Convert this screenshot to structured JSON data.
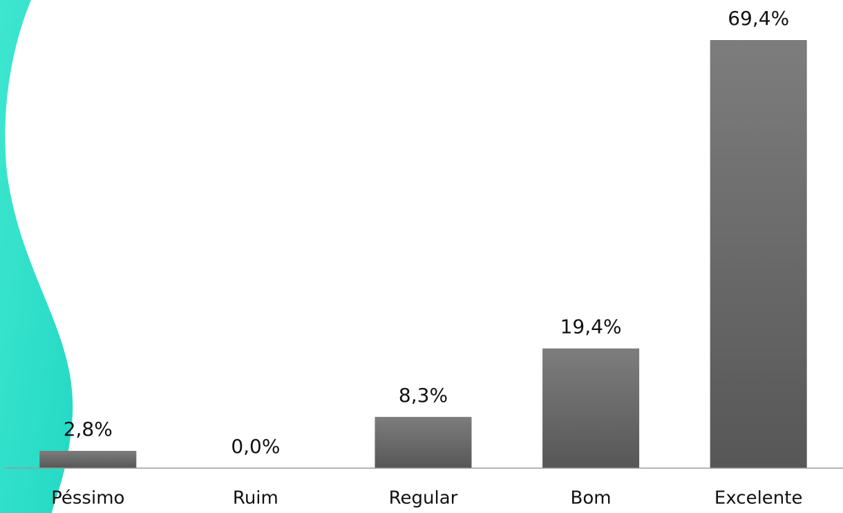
{
  "chart_data": {
    "type": "bar",
    "categories": [
      "Péssimo",
      "Ruim",
      "Regular",
      "Bom",
      "Excelente"
    ],
    "values": [
      2.8,
      0.0,
      8.3,
      19.4,
      69.4
    ],
    "value_labels": [
      "2,8%",
      "0,0%",
      "8,3%",
      "19,4%",
      "69,4%"
    ],
    "color": "#666666"
  }
}
